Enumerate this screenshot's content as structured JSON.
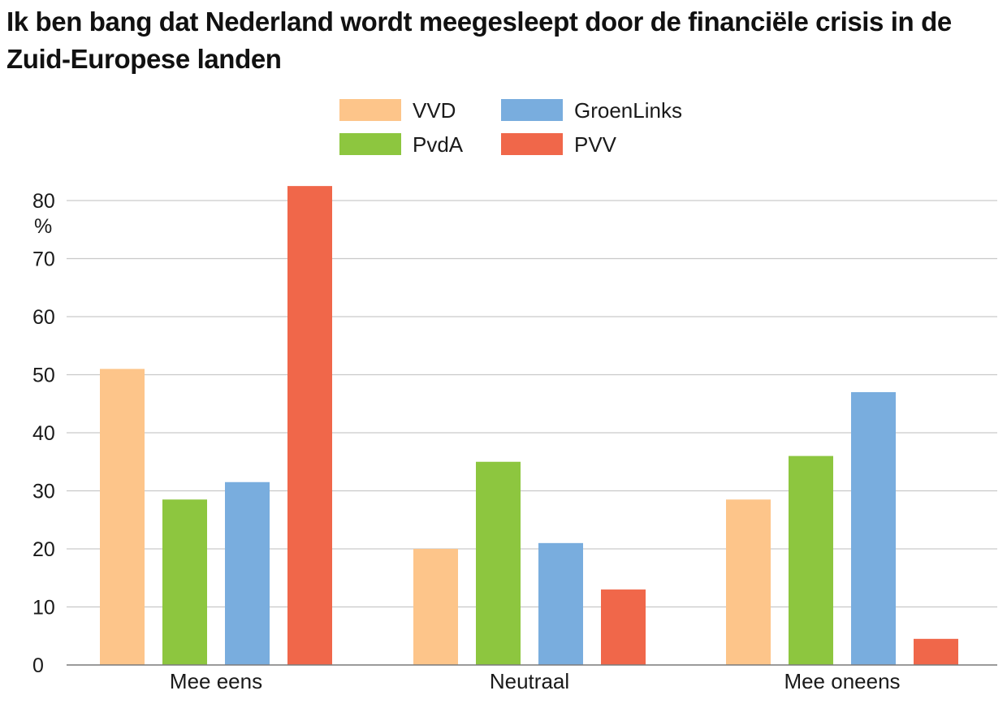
{
  "chart_data": {
    "type": "bar",
    "title": "Ik ben bang dat Nederland wordt meegesleept door de financiële crisis in de Zuid-Europese landen",
    "ylabel": "%",
    "xlabel": "",
    "categories": [
      "Mee eens",
      "Neutraal",
      "Mee oneens"
    ],
    "series": [
      {
        "name": "VVD",
        "color": "#FDC58A",
        "values": [
          51,
          20,
          28.5
        ]
      },
      {
        "name": "PvdA",
        "color": "#8DC63F",
        "values": [
          28.5,
          35,
          36
        ]
      },
      {
        "name": "GroenLinks",
        "color": "#79ADDE",
        "values": [
          31.5,
          21,
          47
        ]
      },
      {
        "name": "PVV",
        "color": "#F0674A",
        "values": [
          82.5,
          13,
          4.5
        ]
      }
    ],
    "ylim": [
      0,
      85
    ],
    "yticks": [
      0,
      10,
      20,
      30,
      40,
      50,
      60,
      70,
      80
    ],
    "grid": true,
    "legend_position": "top-center"
  }
}
